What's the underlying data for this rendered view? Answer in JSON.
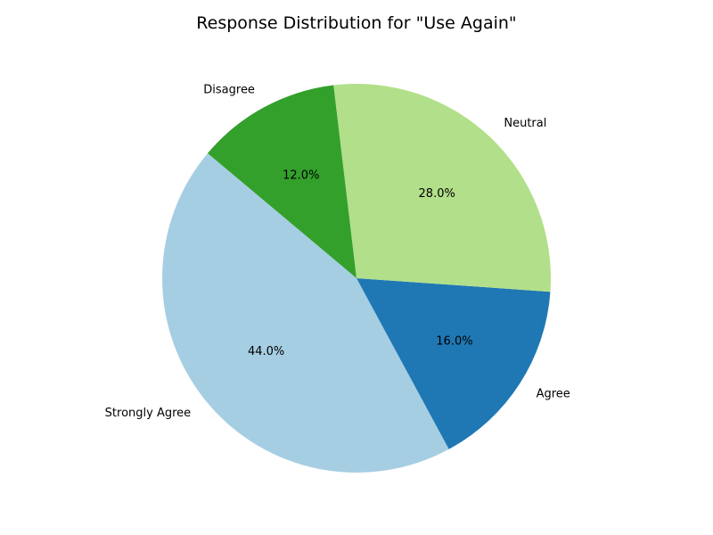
{
  "chart_data": {
    "type": "pie",
    "title": "Response Distribution for \"Use Again\"",
    "start_angle_deg": 140,
    "direction": "counterclockwise",
    "legend": "none",
    "slices": [
      {
        "label": "Strongly Agree",
        "value": 44.0,
        "pct_text": "44.0%",
        "color": "#a6cee3"
      },
      {
        "label": "Agree",
        "value": 16.0,
        "pct_text": "16.0%",
        "color": "#1f78b4"
      },
      {
        "label": "Neutral",
        "value": 28.0,
        "pct_text": "28.0%",
        "color": "#b2df8a"
      },
      {
        "label": "Disagree",
        "value": 12.0,
        "pct_text": "12.0%",
        "color": "#33a02c"
      }
    ]
  }
}
